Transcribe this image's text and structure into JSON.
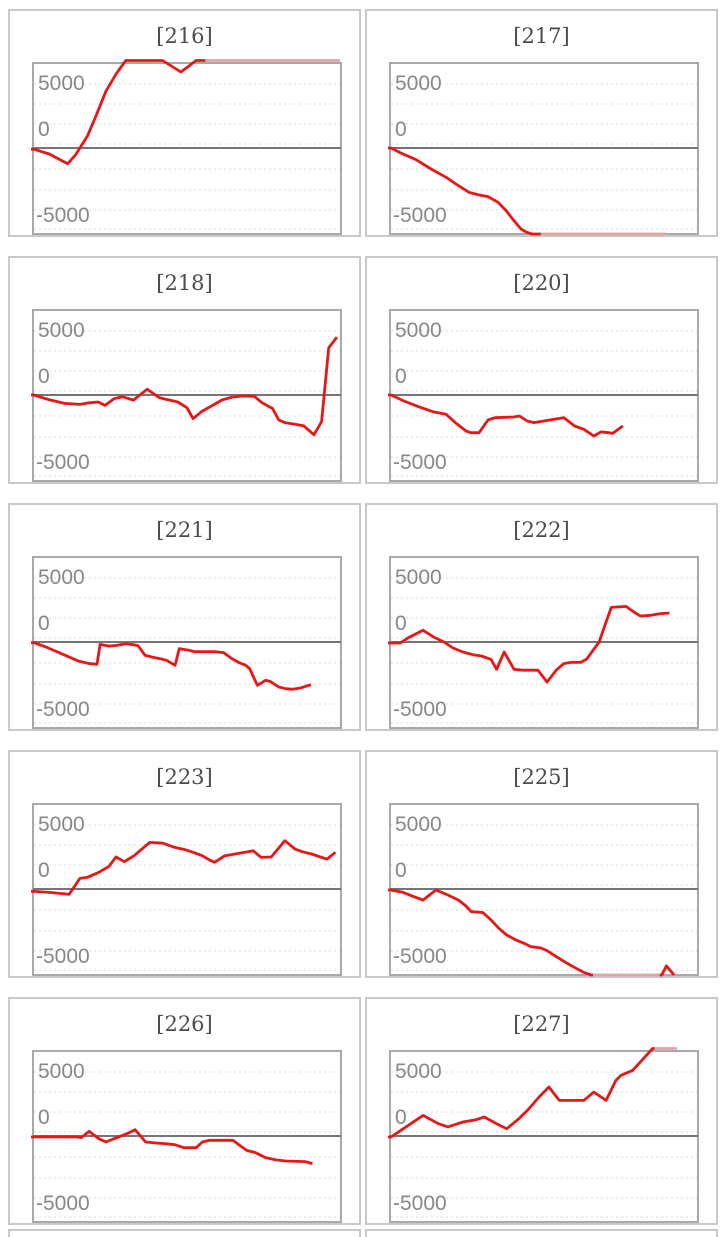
{
  "page": {
    "background": "#ffffff"
  },
  "styles": {
    "series_color": "#e61717",
    "series_clipped_color": "#dda4a4",
    "zero_line_color": "#757575",
    "gridline_color": "#d8d8d8",
    "plot_border_color": "#a9a9a9",
    "panel_border_color": "#c9c9c9",
    "title_color": "#4b4b4b",
    "axis_label_color": "#878787"
  },
  "axis": {
    "tick_labels": [
      "5000",
      "0",
      "-5000"
    ],
    "ymin": -7000,
    "ymax": 7000
  },
  "notes": "points format: [x_fraction_of_plot_width, value, clipped_flag(optional 1=drawn pale at saturation)]",
  "chart_data": [
    {
      "type": "line",
      "title": "[216]",
      "machine_id": "216",
      "ylim": [
        -7000,
        7000
      ],
      "yticks": [
        5000,
        0,
        -5000
      ],
      "grid": true,
      "legend": "none",
      "points": [
        [
          0,
          -100
        ],
        [
          0.05,
          -500
        ],
        [
          0.08,
          -900
        ],
        [
          0.11,
          -1300
        ],
        [
          0.135,
          -600
        ],
        [
          0.15,
          0
        ],
        [
          0.175,
          1000
        ],
        [
          0.2,
          2500
        ],
        [
          0.235,
          4700
        ],
        [
          0.27,
          6200
        ],
        [
          0.3,
          7300
        ],
        [
          0.42,
          7300
        ],
        [
          0.48,
          6300
        ],
        [
          0.53,
          7300
        ],
        [
          0.56,
          7300,
          1
        ],
        [
          1.0,
          7300,
          1
        ]
      ]
    },
    {
      "type": "line",
      "title": "[217]",
      "machine_id": "217",
      "ylim": [
        -7000,
        7000
      ],
      "yticks": [
        5000,
        0,
        -5000
      ],
      "grid": true,
      "legend": "none",
      "points": [
        [
          0,
          0
        ],
        [
          0.033,
          -420
        ],
        [
          0.082,
          -970
        ],
        [
          0.131,
          -1740
        ],
        [
          0.18,
          -2430
        ],
        [
          0.212,
          -2980
        ],
        [
          0.255,
          -3670
        ],
        [
          0.288,
          -3890
        ],
        [
          0.317,
          -4030
        ],
        [
          0.35,
          -4500
        ],
        [
          0.376,
          -5190
        ],
        [
          0.402,
          -6020
        ],
        [
          0.425,
          -6710
        ],
        [
          0.441,
          -6950
        ],
        [
          0.46,
          -7300
        ],
        [
          0.477,
          -7300
        ],
        [
          0.49,
          -7300,
          1
        ],
        [
          0.9,
          -7300,
          1
        ]
      ]
    },
    {
      "type": "line",
      "title": "[218]",
      "machine_id": "218",
      "ylim": [
        -7000,
        7000
      ],
      "yticks": [
        5000,
        0,
        -5000
      ],
      "grid": true,
      "legend": "none",
      "points": [
        [
          0,
          0
        ],
        [
          0.05,
          -400
        ],
        [
          0.1,
          -700
        ],
        [
          0.15,
          -780
        ],
        [
          0.18,
          -650
        ],
        [
          0.21,
          -580
        ],
        [
          0.232,
          -860
        ],
        [
          0.262,
          -300
        ],
        [
          0.29,
          -150
        ],
        [
          0.325,
          -420
        ],
        [
          0.37,
          480
        ],
        [
          0.41,
          -230
        ],
        [
          0.44,
          -410
        ],
        [
          0.47,
          -580
        ],
        [
          0.5,
          -1050
        ],
        [
          0.52,
          -1960
        ],
        [
          0.55,
          -1330
        ],
        [
          0.58,
          -910
        ],
        [
          0.615,
          -410
        ],
        [
          0.648,
          -170
        ],
        [
          0.68,
          -80
        ],
        [
          0.72,
          -110
        ],
        [
          0.745,
          -640
        ],
        [
          0.78,
          -1130
        ],
        [
          0.8,
          -2070
        ],
        [
          0.82,
          -2290
        ],
        [
          0.853,
          -2430
        ],
        [
          0.882,
          -2560
        ],
        [
          0.915,
          -3300
        ],
        [
          0.94,
          -2200
        ],
        [
          0.963,
          3900
        ],
        [
          0.99,
          4800
        ]
      ]
    },
    {
      "type": "line",
      "title": "[220]",
      "machine_id": "220",
      "ylim": [
        -7000,
        7000
      ],
      "yticks": [
        5000,
        0,
        -5000
      ],
      "grid": true,
      "legend": "none",
      "points": [
        [
          0,
          0
        ],
        [
          0.042,
          -500
        ],
        [
          0.09,
          -970
        ],
        [
          0.137,
          -1380
        ],
        [
          0.18,
          -1600
        ],
        [
          0.21,
          -2290
        ],
        [
          0.245,
          -2980
        ],
        [
          0.26,
          -3120
        ],
        [
          0.288,
          -3120
        ],
        [
          0.317,
          -2070
        ],
        [
          0.34,
          -1880
        ],
        [
          0.4,
          -1820
        ],
        [
          0.42,
          -1740
        ],
        [
          0.445,
          -2150
        ],
        [
          0.467,
          -2290
        ],
        [
          0.5,
          -2150
        ],
        [
          0.533,
          -2010
        ],
        [
          0.565,
          -1880
        ],
        [
          0.6,
          -2570
        ],
        [
          0.63,
          -2840
        ],
        [
          0.663,
          -3400
        ],
        [
          0.686,
          -3060
        ],
        [
          0.71,
          -3120
        ],
        [
          0.725,
          -3170
        ],
        [
          0.75,
          -2700
        ],
        [
          0.758,
          -2570
        ]
      ]
    },
    {
      "type": "line",
      "title": "[221]",
      "machine_id": "221",
      "ylim": [
        -7000,
        7000
      ],
      "yticks": [
        5000,
        0,
        -5000
      ],
      "grid": true,
      "legend": "none",
      "points": [
        [
          0,
          -60
        ],
        [
          0.04,
          -420
        ],
        [
          0.09,
          -970
        ],
        [
          0.147,
          -1600
        ],
        [
          0.183,
          -1800
        ],
        [
          0.206,
          -1840
        ],
        [
          0.216,
          -200
        ],
        [
          0.245,
          -340
        ],
        [
          0.27,
          -280
        ],
        [
          0.3,
          -140
        ],
        [
          0.325,
          -220
        ],
        [
          0.34,
          -300
        ],
        [
          0.363,
          -1100
        ],
        [
          0.385,
          -1240
        ],
        [
          0.412,
          -1380
        ],
        [
          0.433,
          -1520
        ],
        [
          0.461,
          -1930
        ],
        [
          0.475,
          -550
        ],
        [
          0.507,
          -690
        ],
        [
          0.525,
          -800
        ],
        [
          0.59,
          -800
        ],
        [
          0.62,
          -880
        ],
        [
          0.647,
          -1380
        ],
        [
          0.67,
          -1710
        ],
        [
          0.692,
          -1930
        ],
        [
          0.705,
          -2210
        ],
        [
          0.73,
          -3590
        ],
        [
          0.757,
          -3170
        ],
        [
          0.772,
          -3260
        ],
        [
          0.8,
          -3730
        ],
        [
          0.822,
          -3870
        ],
        [
          0.845,
          -3920
        ],
        [
          0.87,
          -3810
        ],
        [
          0.905,
          -3540
        ]
      ]
    },
    {
      "type": "line",
      "title": "[222]",
      "machine_id": "222",
      "ylim": [
        -7000,
        7000
      ],
      "yticks": [
        5000,
        0,
        -5000
      ],
      "grid": true,
      "legend": "none",
      "points": [
        [
          0,
          -80
        ],
        [
          0.03,
          -80
        ],
        [
          0.06,
          410
        ],
        [
          0.105,
          970
        ],
        [
          0.14,
          410
        ],
        [
          0.173,
          0
        ],
        [
          0.203,
          -500
        ],
        [
          0.235,
          -830
        ],
        [
          0.268,
          -1050
        ],
        [
          0.295,
          -1160
        ],
        [
          0.327,
          -1440
        ],
        [
          0.345,
          -2260
        ],
        [
          0.37,
          -830
        ],
        [
          0.402,
          -2260
        ],
        [
          0.43,
          -2340
        ],
        [
          0.48,
          -2340
        ],
        [
          0.51,
          -3310
        ],
        [
          0.54,
          -2340
        ],
        [
          0.565,
          -1790
        ],
        [
          0.59,
          -1680
        ],
        [
          0.62,
          -1690
        ],
        [
          0.64,
          -1410
        ],
        [
          0.68,
          0
        ],
        [
          0.703,
          1660
        ],
        [
          0.72,
          2870
        ],
        [
          0.768,
          2950
        ],
        [
          0.794,
          2480
        ],
        [
          0.815,
          2150
        ],
        [
          0.85,
          2210
        ],
        [
          0.88,
          2350
        ],
        [
          0.91,
          2400
        ]
      ]
    },
    {
      "type": "line",
      "title": "[223]",
      "machine_id": "223",
      "ylim": [
        -7000,
        7000
      ],
      "yticks": [
        5000,
        0,
        -5000
      ],
      "grid": true,
      "legend": "none",
      "points": [
        [
          0,
          -200
        ],
        [
          0.05,
          -280
        ],
        [
          0.1,
          -410
        ],
        [
          0.115,
          -440
        ],
        [
          0.15,
          880
        ],
        [
          0.175,
          970
        ],
        [
          0.212,
          1380
        ],
        [
          0.245,
          1880
        ],
        [
          0.268,
          2650
        ],
        [
          0.295,
          2260
        ],
        [
          0.327,
          2760
        ],
        [
          0.353,
          3310
        ],
        [
          0.378,
          3860
        ],
        [
          0.42,
          3800
        ],
        [
          0.46,
          3450
        ],
        [
          0.493,
          3260
        ],
        [
          0.52,
          3040
        ],
        [
          0.55,
          2760
        ],
        [
          0.572,
          2430
        ],
        [
          0.59,
          2210
        ],
        [
          0.624,
          2760
        ],
        [
          0.657,
          2900
        ],
        [
          0.69,
          3040
        ],
        [
          0.716,
          3170
        ],
        [
          0.742,
          2620
        ],
        [
          0.775,
          2650
        ],
        [
          0.82,
          4000
        ],
        [
          0.853,
          3310
        ],
        [
          0.876,
          3090
        ],
        [
          0.908,
          2900
        ],
        [
          0.94,
          2620
        ],
        [
          0.958,
          2480
        ],
        [
          0.985,
          3040
        ]
      ]
    },
    {
      "type": "line",
      "title": "[225]",
      "machine_id": "225",
      "ylim": [
        -7000,
        7000
      ],
      "yticks": [
        5000,
        0,
        -5000
      ],
      "grid": true,
      "legend": "none",
      "points": [
        [
          0,
          -80
        ],
        [
          0.04,
          -280
        ],
        [
          0.075,
          -640
        ],
        [
          0.105,
          -910
        ],
        [
          0.147,
          -80
        ],
        [
          0.186,
          -500
        ],
        [
          0.22,
          -910
        ],
        [
          0.245,
          -1410
        ],
        [
          0.262,
          -1880
        ],
        [
          0.3,
          -1950
        ],
        [
          0.327,
          -2570
        ],
        [
          0.353,
          -3260
        ],
        [
          0.378,
          -3810
        ],
        [
          0.408,
          -4220
        ],
        [
          0.435,
          -4500
        ],
        [
          0.458,
          -4780
        ],
        [
          0.49,
          -4890
        ],
        [
          0.51,
          -5110
        ],
        [
          0.54,
          -5600
        ],
        [
          0.572,
          -6100
        ],
        [
          0.605,
          -6570
        ],
        [
          0.632,
          -6930
        ],
        [
          0.655,
          -7300
        ],
        [
          0.66,
          -7300,
          1
        ],
        [
          0.878,
          -7300,
          1
        ],
        [
          0.885,
          -7300
        ],
        [
          0.9,
          -6370
        ],
        [
          0.925,
          -7300
        ]
      ]
    },
    {
      "type": "line",
      "title": "[226]",
      "machine_id": "226",
      "ylim": [
        -7000,
        7000
      ],
      "yticks": [
        5000,
        0,
        -5000
      ],
      "grid": true,
      "legend": "none",
      "points": [
        [
          0,
          -80
        ],
        [
          0.14,
          -80
        ],
        [
          0.155,
          -130
        ],
        [
          0.18,
          390
        ],
        [
          0.212,
          -220
        ],
        [
          0.235,
          -500
        ],
        [
          0.27,
          -140
        ],
        [
          0.305,
          200
        ],
        [
          0.33,
          520
        ],
        [
          0.365,
          -500
        ],
        [
          0.398,
          -580
        ],
        [
          0.43,
          -640
        ],
        [
          0.46,
          -720
        ],
        [
          0.49,
          -970
        ],
        [
          0.53,
          -970
        ],
        [
          0.55,
          -500
        ],
        [
          0.575,
          -360
        ],
        [
          0.65,
          -360
        ],
        [
          0.675,
          -830
        ],
        [
          0.695,
          -1190
        ],
        [
          0.725,
          -1380
        ],
        [
          0.757,
          -1790
        ],
        [
          0.79,
          -1980
        ],
        [
          0.822,
          -2070
        ],
        [
          0.886,
          -2120
        ],
        [
          0.91,
          -2290
        ]
      ]
    },
    {
      "type": "line",
      "title": "[227]",
      "machine_id": "227",
      "ylim": [
        -7000,
        7000
      ],
      "yticks": [
        5000,
        0,
        -5000
      ],
      "grid": true,
      "legend": "none",
      "points": [
        [
          0,
          -80
        ],
        [
          0.04,
          600
        ],
        [
          0.105,
          1710
        ],
        [
          0.155,
          1020
        ],
        [
          0.186,
          750
        ],
        [
          0.235,
          1160
        ],
        [
          0.278,
          1350
        ],
        [
          0.305,
          1570
        ],
        [
          0.345,
          1020
        ],
        [
          0.378,
          600
        ],
        [
          0.418,
          1430
        ],
        [
          0.451,
          2260
        ],
        [
          0.484,
          3230
        ],
        [
          0.516,
          4060
        ],
        [
          0.55,
          2950
        ],
        [
          0.63,
          2950
        ],
        [
          0.663,
          3640
        ],
        [
          0.703,
          2950
        ],
        [
          0.735,
          4610
        ],
        [
          0.752,
          5030
        ],
        [
          0.79,
          5440
        ],
        [
          0.825,
          6400
        ],
        [
          0.855,
          7300
        ],
        [
          0.862,
          7300,
          1
        ],
        [
          0.935,
          7300,
          1
        ]
      ]
    }
  ]
}
